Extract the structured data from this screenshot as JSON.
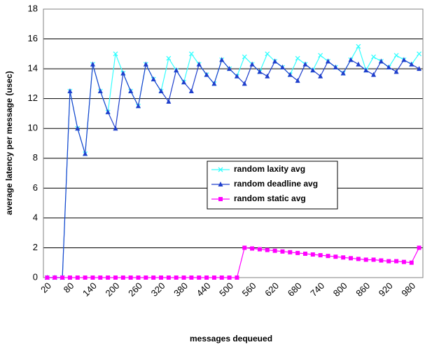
{
  "chart_data": {
    "type": "line",
    "x_label": "messages dequeued",
    "y_label": "average latency per message (usec)",
    "categories": [
      "20",
      null,
      null,
      "80",
      null,
      null,
      "140",
      null,
      null,
      "200",
      null,
      null,
      "260",
      null,
      null,
      "320",
      null,
      null,
      "380",
      null,
      null,
      "440",
      null,
      null,
      "500",
      null,
      null,
      "560",
      null,
      null,
      "620",
      null,
      null,
      "680",
      null,
      null,
      "740",
      null,
      null,
      "800",
      null,
      null,
      "860",
      null,
      null,
      "920",
      null,
      null,
      "980",
      null
    ],
    "series": [
      {
        "name": "random laxity avg",
        "color": "#33ffff",
        "marker": "x",
        "values": [
          0,
          0,
          0,
          12.5,
          10,
          8.3,
          14.3,
          12.5,
          11.1,
          15.0,
          13.7,
          12.5,
          11.5,
          14.3,
          13.3,
          12.5,
          14.7,
          13.9,
          13.1,
          15.0,
          14.3,
          13.6,
          13.0,
          14.6,
          14.0,
          13.5,
          14.8,
          14.3,
          13.8,
          15.0,
          14.5,
          14.1,
          13.6,
          14.7,
          14.3,
          13.9,
          14.9,
          14.5,
          14.1,
          13.7,
          14.6,
          15.5,
          13.9,
          14.8,
          14.5,
          14.1,
          14.9,
          14.6,
          14.3,
          15.0
        ]
      },
      {
        "name": "random deadline avg",
        "color": "#1f3fcc",
        "marker": "triangle",
        "values": [
          0,
          0,
          0,
          12.5,
          10,
          8.3,
          14.3,
          12.5,
          11.1,
          10,
          13.7,
          12.5,
          11.5,
          14.3,
          13.3,
          12.5,
          11.8,
          13.9,
          13.1,
          12.5,
          14.3,
          13.6,
          13.0,
          14.6,
          14.0,
          13.5,
          13.0,
          14.3,
          13.8,
          13.5,
          14.5,
          14.1,
          13.6,
          13.2,
          14.3,
          13.9,
          13.5,
          14.5,
          14.1,
          13.7,
          14.6,
          14.3,
          13.9,
          13.6,
          14.5,
          14.1,
          13.8,
          14.6,
          14.3,
          14.0
        ]
      },
      {
        "name": "random static avg",
        "color": "#ff00ff",
        "marker": "square",
        "values": [
          0,
          0,
          0,
          0,
          0,
          0,
          0,
          0,
          0,
          0,
          0,
          0,
          0,
          0,
          0,
          0,
          0,
          0,
          0,
          0,
          0,
          0,
          0,
          0,
          0,
          0,
          2.0,
          1.95,
          1.9,
          1.85,
          1.8,
          1.75,
          1.7,
          1.65,
          1.6,
          1.55,
          1.5,
          1.45,
          1.4,
          1.35,
          1.3,
          1.25,
          1.2,
          1.2,
          1.15,
          1.1,
          1.1,
          1.05,
          1.0,
          2.0
        ]
      }
    ],
    "ylim": [
      0,
      18
    ],
    "yticks": [
      0,
      2,
      4,
      6,
      8,
      10,
      12,
      14,
      16,
      18
    ],
    "grid": true,
    "legend_position": "center"
  }
}
